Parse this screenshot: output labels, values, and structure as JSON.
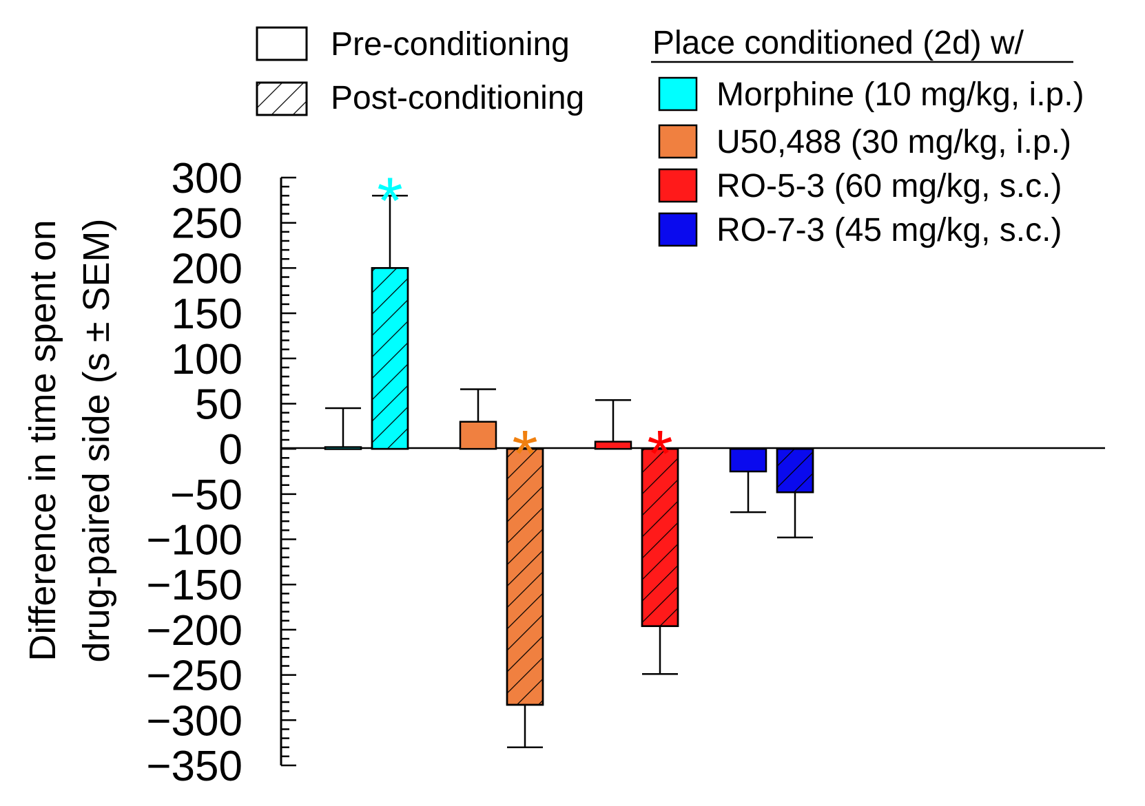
{
  "chart_data": {
    "type": "bar",
    "ylabel": [
      "Difference in time spent on",
      "drug-paired side (s ± SEM)"
    ],
    "xlabel": "",
    "ylim": [
      -350,
      300
    ],
    "y_ticks": [
      300,
      250,
      200,
      150,
      100,
      50,
      0,
      -50,
      -100,
      -150,
      -200,
      -250,
      -300,
      -350
    ],
    "y_tick_labels": [
      "300",
      "250",
      "200",
      "150",
      "100",
      "50",
      "0",
      "−50",
      "−100",
      "−150",
      "−200",
      "−250",
      "−300",
      "−350"
    ],
    "phase_legend": [
      {
        "label": "Pre-conditioning",
        "pattern": "none"
      },
      {
        "label": "Post-conditioning",
        "pattern": "hatch"
      }
    ],
    "drug_legend_title": "Place conditioned (2d) w/",
    "series": [
      {
        "name": "Morphine (10 mg/kg, i.p.)",
        "color": "#00ffff",
        "pre": {
          "value": 2,
          "sem": 43
        },
        "post": {
          "value": 200,
          "sem": 80
        },
        "significant": true,
        "star_color": "#00ffff"
      },
      {
        "name": "U50,488 (30 mg/kg, i.p.)",
        "color": "#f08040",
        "pre": {
          "value": 30,
          "sem": 36
        },
        "post": {
          "value": -283,
          "sem": 47
        },
        "significant": true,
        "star_color": "#f08010"
      },
      {
        "name": "RO-5-3 (60 mg/kg, s.c.)",
        "color": "#ff1a1a",
        "pre": {
          "value": 8,
          "sem": 46
        },
        "post": {
          "value": -196,
          "sem": 53
        },
        "significant": true,
        "star_color": "#ff0000"
      },
      {
        "name": "RO-7-3 (45 mg/kg, s.c.)",
        "color": "#0a0aee",
        "pre": {
          "value": -25,
          "sem": 45
        },
        "post": {
          "value": -48,
          "sem": 50
        },
        "significant": false,
        "star_color": ""
      }
    ],
    "significance_marker": "*",
    "legend_positions": [
      "top-left",
      "top-right"
    ]
  }
}
